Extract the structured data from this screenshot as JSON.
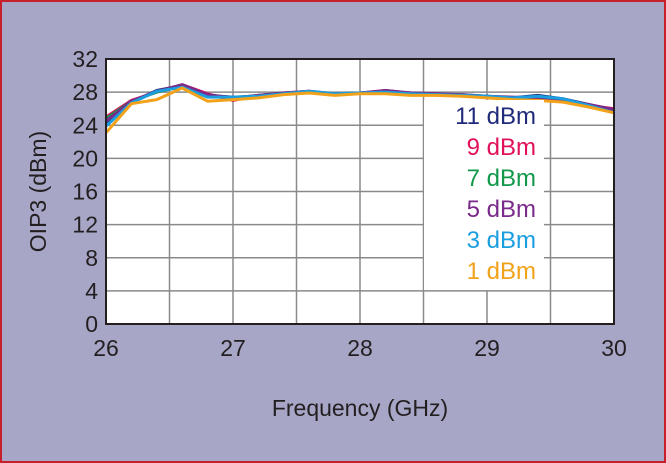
{
  "chart_data": {
    "type": "line",
    "title": "",
    "xlabel": "Frequency (GHz)",
    "ylabel": "OIP3 (dBm)",
    "xlim": [
      26,
      30
    ],
    "ylim": [
      0,
      32
    ],
    "xticks": [
      26,
      27,
      28,
      29,
      30
    ],
    "yticks": [
      0,
      4,
      8,
      12,
      16,
      20,
      24,
      28,
      32
    ],
    "grid": true,
    "legend_position": "right",
    "x": [
      26,
      26.2,
      26.4,
      26.6,
      26.8,
      27,
      27.2,
      27.4,
      27.6,
      27.8,
      28,
      28.2,
      28.4,
      28.6,
      28.8,
      29,
      29.2,
      29.4,
      29.6,
      29.8,
      30
    ],
    "series": [
      {
        "name": "11 dBm",
        "color": "#1f2a7a",
        "values": [
          24.3,
          26.8,
          28.2,
          28.8,
          27.6,
          27.4,
          27.5,
          27.8,
          28.0,
          27.7,
          27.9,
          28.1,
          27.9,
          27.7,
          27.6,
          27.5,
          27.3,
          27.6,
          27.2,
          26.5,
          25.8
        ]
      },
      {
        "name": "9 dBm",
        "color": "#e0105a",
        "values": [
          25.0,
          27.0,
          28.0,
          28.9,
          27.8,
          27.0,
          27.6,
          27.9,
          28.1,
          27.7,
          27.9,
          28.2,
          27.9,
          27.8,
          27.6,
          27.4,
          27.3,
          27.2,
          26.9,
          26.4,
          26.0
        ]
      },
      {
        "name": "7 dBm",
        "color": "#12984a",
        "values": [
          24.8,
          26.9,
          28.0,
          28.7,
          27.6,
          27.3,
          27.6,
          27.9,
          28.0,
          27.8,
          27.9,
          28.0,
          27.8,
          27.7,
          27.7,
          27.5,
          27.3,
          27.2,
          26.9,
          26.3,
          25.7
        ]
      },
      {
        "name": "5 dBm",
        "color": "#7a2a8a",
        "values": [
          24.5,
          26.9,
          28.1,
          28.9,
          27.7,
          27.3,
          27.6,
          27.9,
          28.1,
          27.8,
          27.9,
          28.2,
          27.9,
          27.8,
          27.7,
          27.5,
          27.4,
          27.3,
          27.0,
          26.5,
          25.9
        ]
      },
      {
        "name": "3 dBm",
        "color": "#1a9ee0",
        "values": [
          23.9,
          26.7,
          28.1,
          28.6,
          27.4,
          27.4,
          27.5,
          27.8,
          28.1,
          27.8,
          27.9,
          28.0,
          27.8,
          27.7,
          27.6,
          27.5,
          27.3,
          27.5,
          27.2,
          26.4,
          25.5
        ]
      },
      {
        "name": "1 dBm",
        "color": "#f2a21a",
        "values": [
          23.1,
          26.6,
          27.1,
          28.5,
          26.9,
          27.1,
          27.3,
          27.7,
          27.9,
          27.6,
          27.8,
          27.8,
          27.6,
          27.6,
          27.5,
          27.3,
          27.1,
          27.0,
          26.8,
          26.2,
          25.5
        ]
      }
    ]
  }
}
